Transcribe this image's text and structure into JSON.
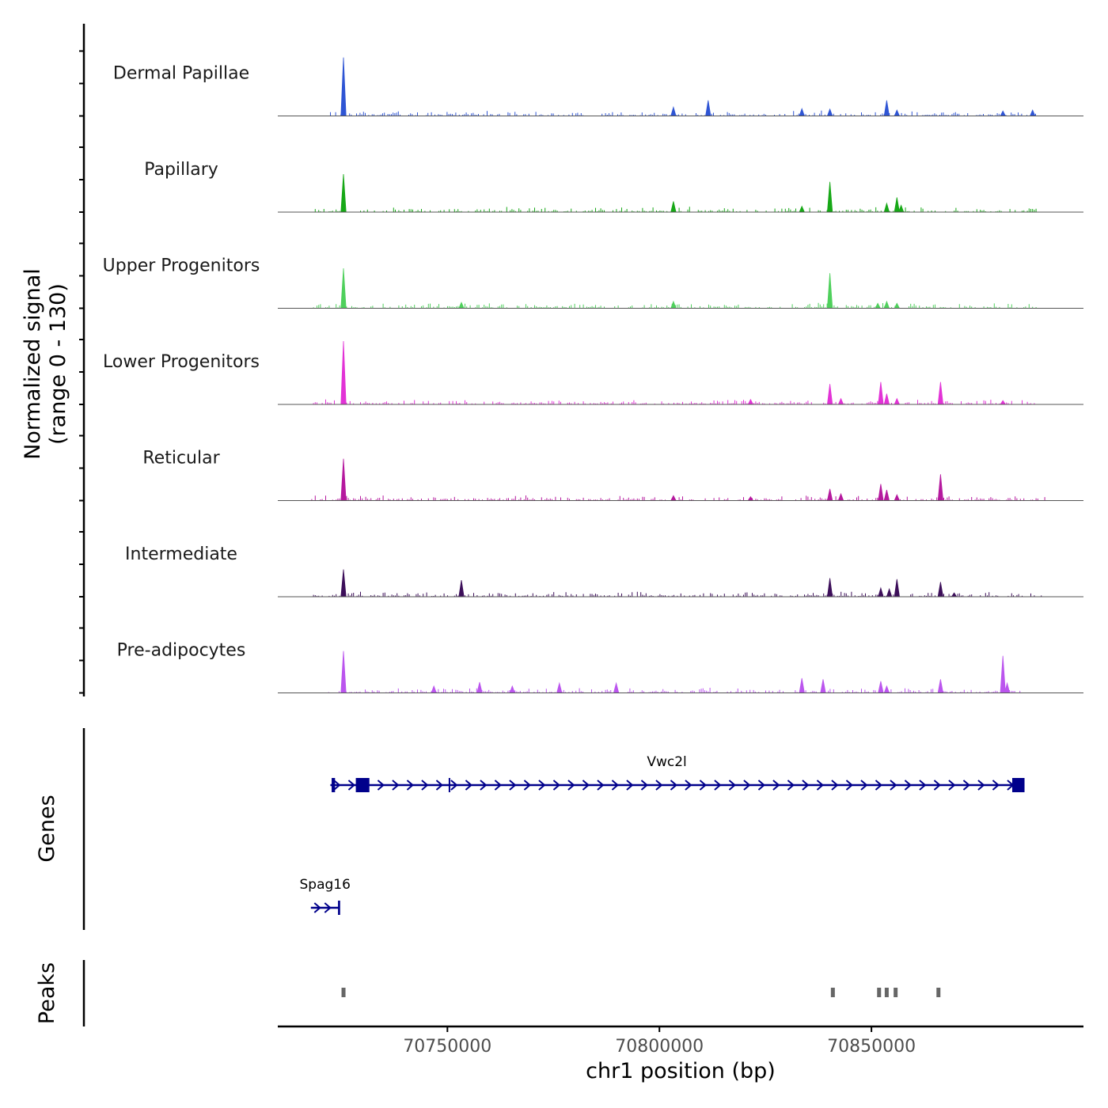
{
  "chart_data": {
    "type": "genome-coverage",
    "chromosome": "chr1",
    "x_range": [
      70710000,
      70900000
    ],
    "y_range": [
      0,
      130
    ],
    "coverage_axis_title": [
      "Normalized signal",
      "(range 0 - 130)"
    ],
    "genes_axis_title": "Genes",
    "peaks_axis_title": "Peaks",
    "xlabel": "chr1 position (bp)",
    "x_ticks": [
      {
        "value": 70750000,
        "label": "70750000"
      },
      {
        "value": 70800000,
        "label": "70800000"
      },
      {
        "value": 70850000,
        "label": "70850000"
      }
    ],
    "tracks": [
      {
        "name": "Dermal Papillae",
        "color": "#2f55d4",
        "noise_range": [
          70722000,
          70889000
        ],
        "peaks": [
          [
            70725500,
            120
          ],
          [
            70803300,
            18
          ],
          [
            70811500,
            32
          ],
          [
            70833600,
            15
          ],
          [
            70840200,
            14
          ],
          [
            70853600,
            32
          ],
          [
            70856000,
            12
          ],
          [
            70881000,
            10
          ],
          [
            70888000,
            12
          ]
        ]
      },
      {
        "name": "Papillary",
        "color": "#17a817",
        "noise_range": [
          70718000,
          70889000
        ],
        "peaks": [
          [
            70725500,
            78
          ],
          [
            70803300,
            22
          ],
          [
            70833600,
            12
          ],
          [
            70840200,
            62
          ],
          [
            70853600,
            18
          ],
          [
            70856000,
            30
          ],
          [
            70857000,
            14
          ]
        ]
      },
      {
        "name": "Upper Progenitors",
        "color": "#4fd05c",
        "noise_range": [
          70718000,
          70889000
        ],
        "peaks": [
          [
            70725500,
            82
          ],
          [
            70753300,
            12
          ],
          [
            70803300,
            14
          ],
          [
            70840200,
            72
          ],
          [
            70851500,
            10
          ],
          [
            70853600,
            14
          ],
          [
            70856000,
            10
          ]
        ]
      },
      {
        "name": "Lower Progenitors",
        "color": "#e233d6",
        "noise_range": [
          70718000,
          70889000
        ],
        "peaks": [
          [
            70725500,
            130
          ],
          [
            70821500,
            10
          ],
          [
            70840200,
            42
          ],
          [
            70842800,
            12
          ],
          [
            70852200,
            46
          ],
          [
            70853600,
            22
          ],
          [
            70856000,
            12
          ],
          [
            70866300,
            46
          ],
          [
            70881000,
            8
          ]
        ]
      },
      {
        "name": "Reticular",
        "color": "#b5199e",
        "noise_range": [
          70718000,
          70891000
        ],
        "peaks": [
          [
            70725500,
            86
          ],
          [
            70803300,
            10
          ],
          [
            70821500,
            8
          ],
          [
            70840200,
            24
          ],
          [
            70842800,
            14
          ],
          [
            70852200,
            34
          ],
          [
            70853600,
            22
          ],
          [
            70856000,
            12
          ],
          [
            70866300,
            54
          ]
        ]
      },
      {
        "name": "Intermediate",
        "color": "#3d0f5a",
        "noise_range": [
          70718000,
          70891000
        ],
        "peaks": [
          [
            70725500,
            56
          ],
          [
            70753300,
            34
          ],
          [
            70840200,
            38
          ],
          [
            70852200,
            18
          ],
          [
            70854200,
            16
          ],
          [
            70856000,
            36
          ],
          [
            70866300,
            30
          ],
          [
            70869500,
            8
          ]
        ]
      },
      {
        "name": "Pre-adipocytes",
        "color": "#bb55ee",
        "noise_range": [
          70722000,
          70887000
        ],
        "peaks": [
          [
            70725500,
            86
          ],
          [
            70746800,
            14
          ],
          [
            70757600,
            22
          ],
          [
            70765300,
            14
          ],
          [
            70776400,
            20
          ],
          [
            70789800,
            20
          ],
          [
            70833600,
            30
          ],
          [
            70838600,
            28
          ],
          [
            70852200,
            24
          ],
          [
            70853600,
            14
          ],
          [
            70866300,
            28
          ],
          [
            70881000,
            76
          ],
          [
            70882000,
            20
          ]
        ]
      }
    ],
    "genes": [
      {
        "name": "Vwc2l",
        "strand": "+",
        "start": 70722400,
        "end": 70885200,
        "exons": [
          [
            70722700,
            70723500
          ],
          [
            70728400,
            70731600
          ],
          [
            70750300,
            70750500
          ],
          [
            70883200,
            70886100
          ]
        ]
      },
      {
        "name": "Spag16",
        "strand": "+",
        "start": 70717800,
        "end": 70724500,
        "exons": [
          [
            70724200,
            70724700
          ]
        ]
      }
    ],
    "peak_regions": [
      70725500,
      70840900,
      70851800,
      70853600,
      70855700,
      70865800
    ]
  }
}
